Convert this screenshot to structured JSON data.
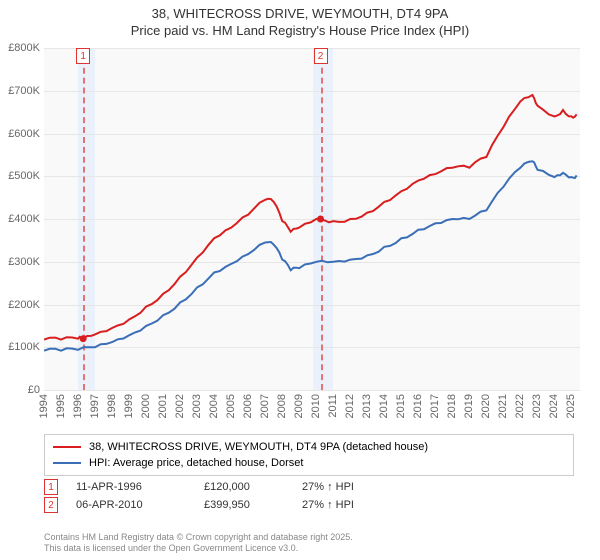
{
  "title_line1": "38, WHITECROSS DRIVE, WEYMOUTH, DT4 9PA",
  "title_line2": "Price paid vs. HM Land Registry's House Price Index (HPI)",
  "colors": {
    "series_price": "#d81e1e",
    "series_hpi": "#3a6fb7",
    "plot_bg": "#f9f9f9",
    "shade": "#eaf1fa",
    "grid": "#e6e6e6",
    "marker_line": "#e57373",
    "badge_border": "#d33"
  },
  "chart": {
    "type": "line",
    "x_domain": [
      1994,
      2025.5
    ],
    "y_domain": [
      0,
      800000
    ],
    "y_ticks": [
      0,
      100000,
      200000,
      300000,
      400000,
      500000,
      600000,
      700000,
      800000
    ],
    "y_tick_labels": [
      "£0",
      "£100K",
      "£200K",
      "£300K",
      "£400K",
      "£500K",
      "£600K",
      "£700K",
      "£800K"
    ],
    "x_ticks": [
      1994,
      1995,
      1996,
      1997,
      1998,
      1999,
      2000,
      2001,
      2002,
      2003,
      2004,
      2005,
      2006,
      2007,
      2008,
      2009,
      2010,
      2011,
      2012,
      2013,
      2014,
      2015,
      2016,
      2017,
      2018,
      2019,
      2020,
      2021,
      2022,
      2023,
      2024,
      2025
    ],
    "x_tick_labels": [
      "1994",
      "1995",
      "1996",
      "1997",
      "1998",
      "1999",
      "2000",
      "2001",
      "2002",
      "2003",
      "2004",
      "2005",
      "2006",
      "2007",
      "2008",
      "2009",
      "2010",
      "2011",
      "2012",
      "2013",
      "2014",
      "2015",
      "2016",
      "2017",
      "2018",
      "2019",
      "2020",
      "2021",
      "2022",
      "2023",
      "2024",
      "2025"
    ],
    "shade_regions": [
      {
        "from": 1996.0,
        "to": 1997.0
      },
      {
        "from": 2009.8,
        "to": 2011.0
      }
    ],
    "markers": [
      {
        "x": 1996.3,
        "label": "1"
      },
      {
        "x": 2010.25,
        "label": "2"
      }
    ],
    "sale_points": [
      {
        "x": 1996.3,
        "y": 120000
      },
      {
        "x": 2010.25,
        "y": 399950
      }
    ],
    "series": [
      {
        "name": "price_paid",
        "color_key": "series_price",
        "points": [
          [
            1994,
            118000
          ],
          [
            1995,
            118000
          ],
          [
            1996,
            120000
          ],
          [
            1996.3,
            120000
          ],
          [
            1997,
            130000
          ],
          [
            1998,
            145000
          ],
          [
            1999,
            165000
          ],
          [
            2000,
            195000
          ],
          [
            2001,
            225000
          ],
          [
            2002,
            265000
          ],
          [
            2003,
            310000
          ],
          [
            2004,
            355000
          ],
          [
            2005,
            380000
          ],
          [
            2006,
            410000
          ],
          [
            2007,
            445000
          ],
          [
            2007.5,
            440000
          ],
          [
            2008,
            395000
          ],
          [
            2008.5,
            370000
          ],
          [
            2009,
            380000
          ],
          [
            2010,
            400000
          ],
          [
            2010.25,
            399950
          ],
          [
            2011,
            395000
          ],
          [
            2012,
            400000
          ],
          [
            2013,
            415000
          ],
          [
            2014,
            440000
          ],
          [
            2015,
            465000
          ],
          [
            2016,
            490000
          ],
          [
            2017,
            505000
          ],
          [
            2018,
            520000
          ],
          [
            2019,
            520000
          ],
          [
            2020,
            545000
          ],
          [
            2021,
            615000
          ],
          [
            2022,
            675000
          ],
          [
            2022.7,
            690000
          ],
          [
            2023,
            665000
          ],
          [
            2024,
            640000
          ],
          [
            2024.5,
            655000
          ],
          [
            2025,
            640000
          ],
          [
            2025.3,
            645000
          ]
        ]
      },
      {
        "name": "hpi",
        "color_key": "series_hpi",
        "points": [
          [
            1994,
            92000
          ],
          [
            1995,
            92000
          ],
          [
            1996,
            94000
          ],
          [
            1997,
            100000
          ],
          [
            1998,
            112000
          ],
          [
            1999,
            128000
          ],
          [
            2000,
            150000
          ],
          [
            2001,
            175000
          ],
          [
            2002,
            205000
          ],
          [
            2003,
            240000
          ],
          [
            2004,
            275000
          ],
          [
            2005,
            295000
          ],
          [
            2006,
            318000
          ],
          [
            2007,
            345000
          ],
          [
            2007.5,
            340000
          ],
          [
            2008,
            305000
          ],
          [
            2008.5,
            280000
          ],
          [
            2009,
            285000
          ],
          [
            2010,
            300000
          ],
          [
            2011,
            300000
          ],
          [
            2012,
            305000
          ],
          [
            2013,
            315000
          ],
          [
            2014,
            335000
          ],
          [
            2015,
            355000
          ],
          [
            2016,
            375000
          ],
          [
            2017,
            390000
          ],
          [
            2018,
            400000
          ],
          [
            2019,
            400000
          ],
          [
            2020,
            420000
          ],
          [
            2021,
            475000
          ],
          [
            2022,
            520000
          ],
          [
            2022.7,
            535000
          ],
          [
            2023,
            515000
          ],
          [
            2024,
            498000
          ],
          [
            2024.5,
            508000
          ],
          [
            2025,
            498000
          ],
          [
            2025.3,
            502000
          ]
        ]
      }
    ]
  },
  "legend": {
    "series1": "38, WHITECROSS DRIVE, WEYMOUTH, DT4 9PA (detached house)",
    "series2": "HPI: Average price, detached house, Dorset"
  },
  "sales": [
    {
      "n": "1",
      "date": "11-APR-1996",
      "price": "£120,000",
      "delta": "27% ↑ HPI"
    },
    {
      "n": "2",
      "date": "06-APR-2010",
      "price": "£399,950",
      "delta": "27% ↑ HPI"
    }
  ],
  "attribution_line1": "Contains HM Land Registry data © Crown copyright and database right 2025.",
  "attribution_line2": "This data is licensed under the Open Government Licence v3.0."
}
